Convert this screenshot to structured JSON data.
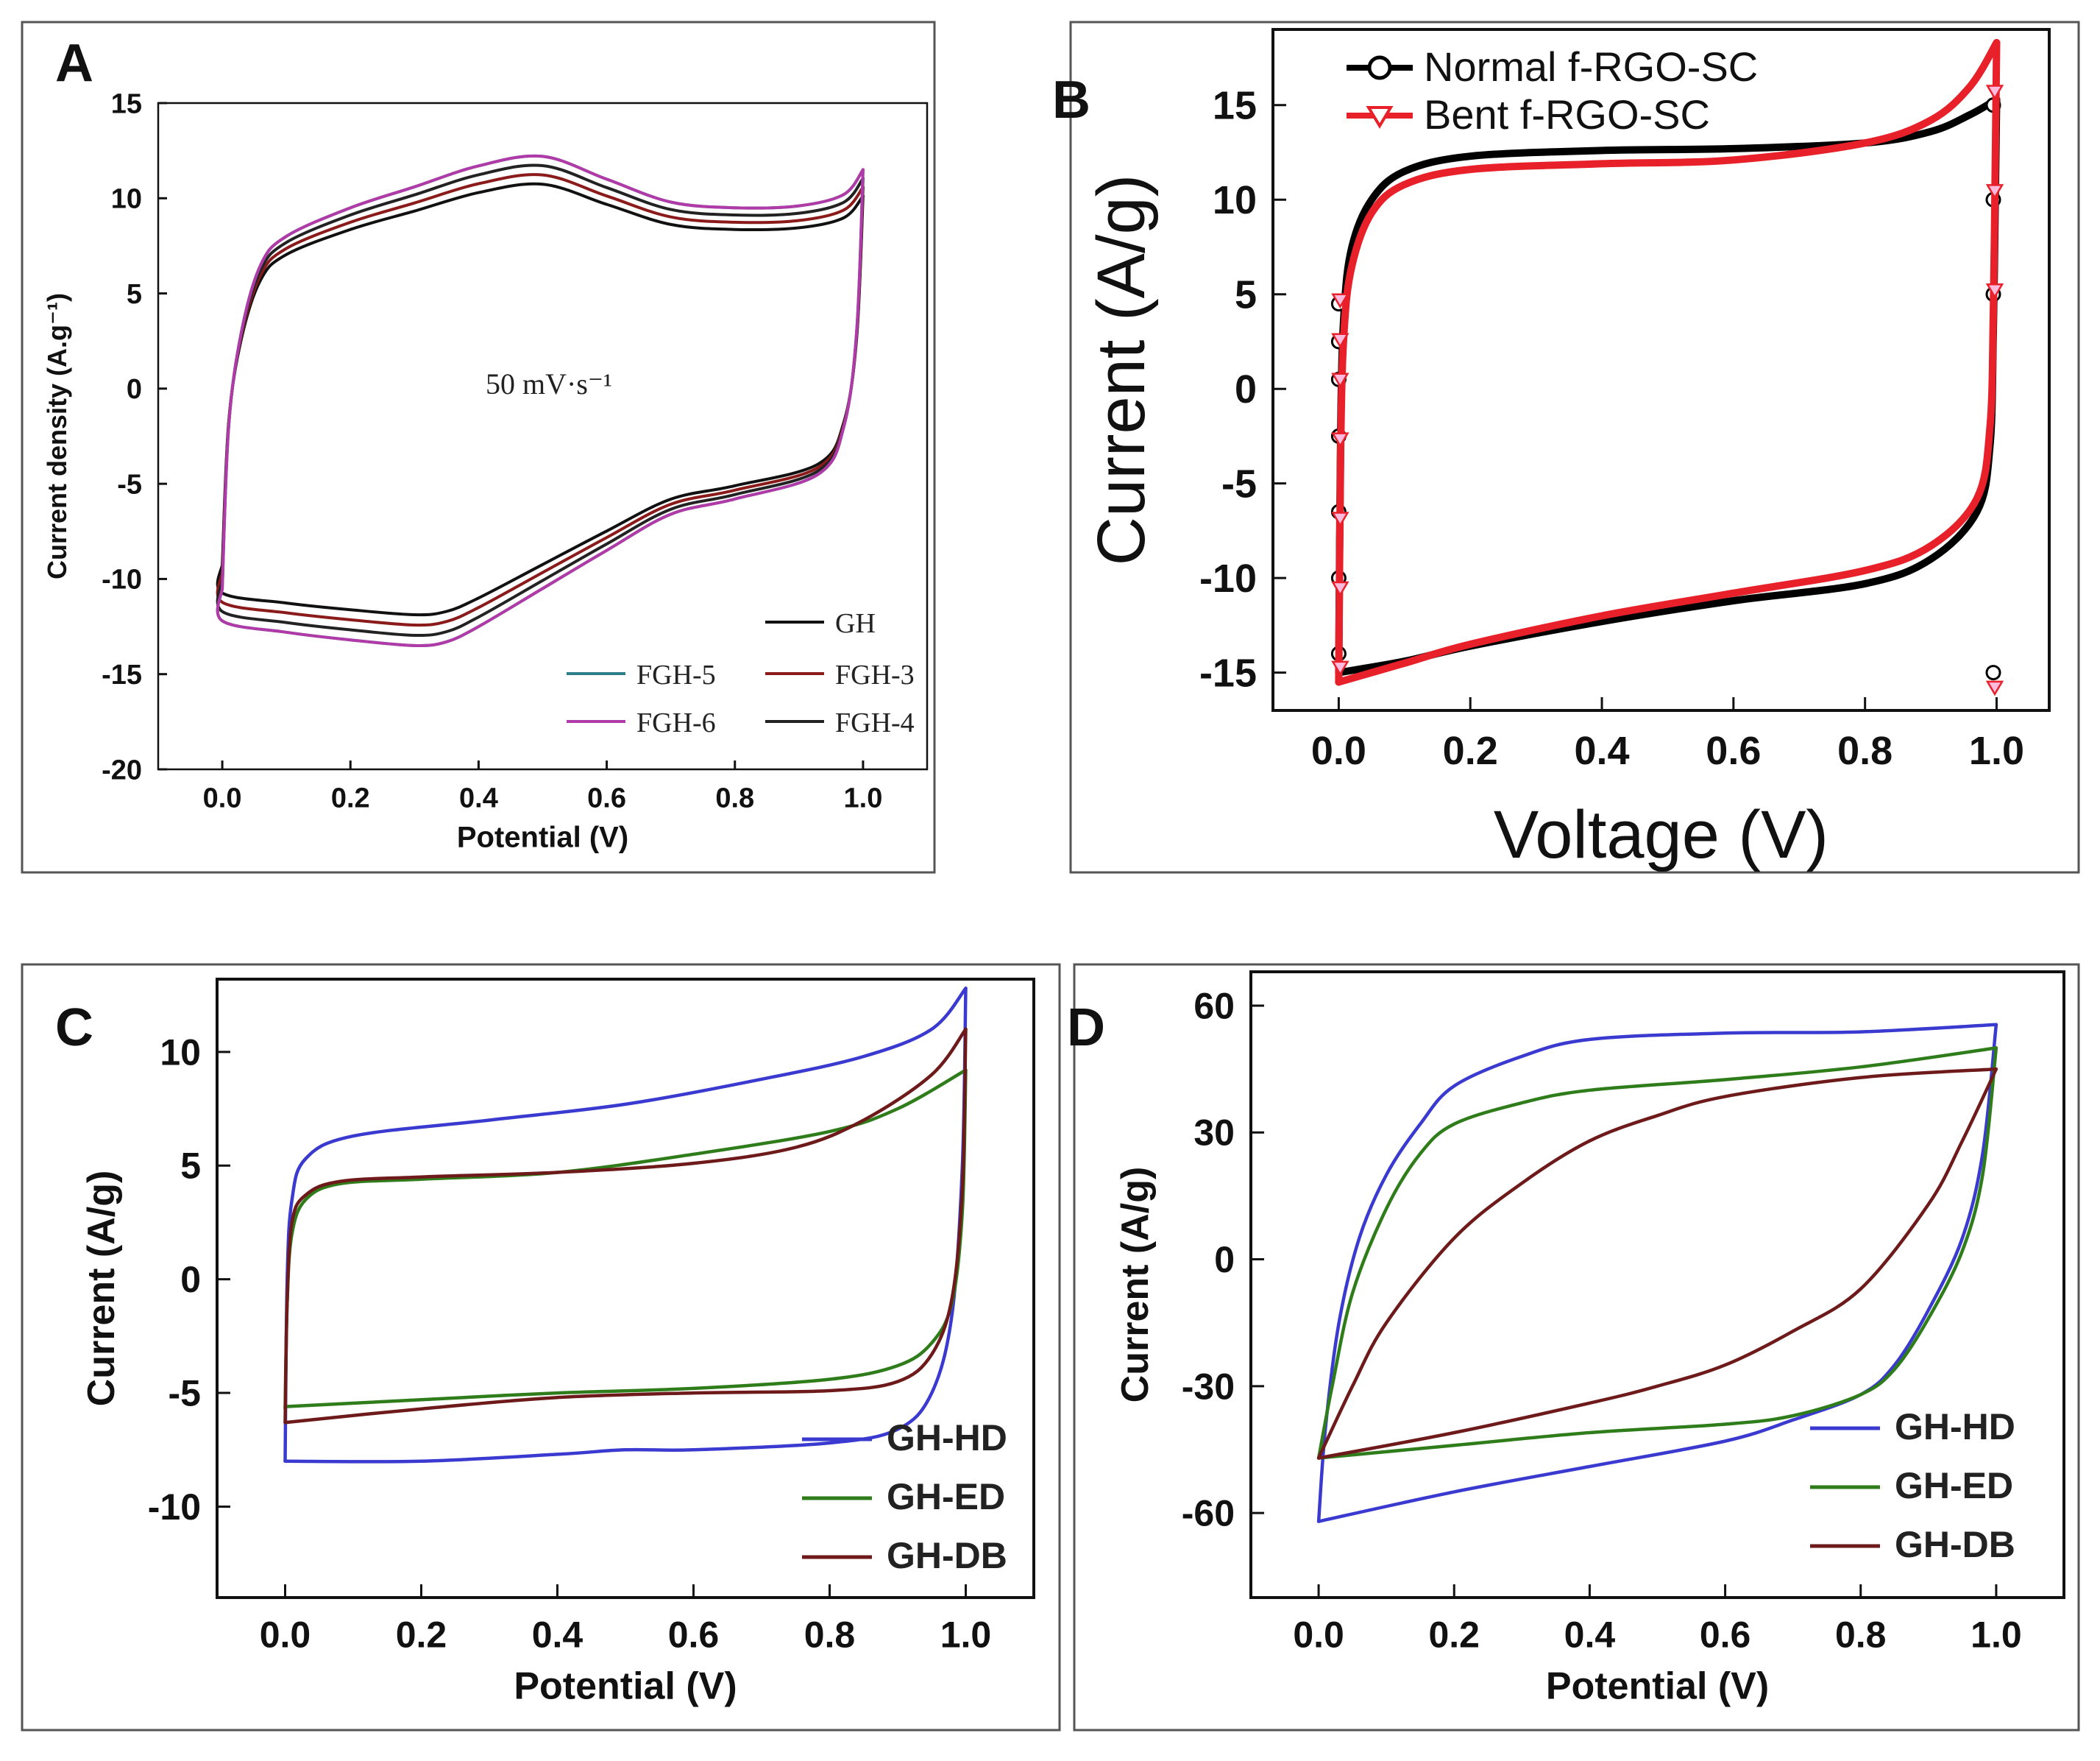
{
  "chart_data": [
    {
      "id": "A",
      "type": "line",
      "panel_label": "A",
      "xlabel": "Potential (V)",
      "ylabel": "Current density (A.g⁻¹)",
      "xlim": [
        -0.1,
        1.1
      ],
      "ylim": [
        -20,
        15
      ],
      "xticks": [
        0.0,
        0.2,
        0.4,
        0.6,
        0.8,
        1.0
      ],
      "xtick_labels": [
        "0.0",
        "0.2",
        "0.4",
        "0.6",
        "0.8",
        "1.0"
      ],
      "yticks": [
        -20,
        -15,
        -10,
        -5,
        0,
        5,
        10,
        15
      ],
      "ytick_labels": [
        "-20",
        "-15",
        "-10",
        "-5",
        "0",
        "5",
        "10",
        "15"
      ],
      "annotation": "50 mV·s⁻¹",
      "legend_position": "bottom-right",
      "series": [
        {
          "name": "GH",
          "color": "#111111",
          "scale": 0.88
        },
        {
          "name": "FGH-3",
          "color": "#8b1a1a",
          "scale": 0.92
        },
        {
          "name": "FGH-4",
          "color": "#222222",
          "scale": 0.96
        },
        {
          "name": "FGH-5",
          "color": "#2f7f86",
          "scale": 1.0
        },
        {
          "name": "FGH-6",
          "color": "#b03aa8",
          "scale": 1.0
        }
      ],
      "base_curve": {
        "upper": [
          [
            0.0,
            -10.5
          ],
          [
            0.01,
            -2
          ],
          [
            0.03,
            3
          ],
          [
            0.06,
            6.5
          ],
          [
            0.1,
            8
          ],
          [
            0.2,
            9.5
          ],
          [
            0.3,
            10.6
          ],
          [
            0.4,
            11.7
          ],
          [
            0.5,
            12.2
          ],
          [
            0.6,
            11
          ],
          [
            0.7,
            9.8
          ],
          [
            0.8,
            9.5
          ],
          [
            0.9,
            9.6
          ],
          [
            0.97,
            10.2
          ],
          [
            1.0,
            11.5
          ]
        ],
        "lower": [
          [
            1.0,
            11.5
          ],
          [
            0.99,
            3
          ],
          [
            0.97,
            -2
          ],
          [
            0.93,
            -4.5
          ],
          [
            0.8,
            -5.8
          ],
          [
            0.7,
            -6.6
          ],
          [
            0.6,
            -8.5
          ],
          [
            0.5,
            -10.5
          ],
          [
            0.4,
            -12.5
          ],
          [
            0.35,
            -13.3
          ],
          [
            0.3,
            -13.5
          ],
          [
            0.2,
            -13.2
          ],
          [
            0.1,
            -12.8
          ],
          [
            0.0,
            -12.2
          ],
          [
            0.0,
            -10.5
          ]
        ]
      }
    },
    {
      "id": "B",
      "type": "line",
      "panel_label": "B",
      "xlabel": "Voltage (V)",
      "ylabel": "Current (A/g)",
      "xlim": [
        -0.1,
        1.08
      ],
      "ylim": [
        -17,
        19
      ],
      "xticks": [
        0.0,
        0.2,
        0.4,
        0.6,
        0.8,
        1.0
      ],
      "xtick_labels": [
        "0.0",
        "0.2",
        "0.4",
        "0.6",
        "0.8",
        "1.0"
      ],
      "yticks": [
        -15,
        -10,
        -5,
        0,
        5,
        10,
        15
      ],
      "ytick_labels": [
        "-15",
        "-10",
        "-5",
        "0",
        "5",
        "10",
        "15"
      ],
      "legend_position": "top-left",
      "series": [
        {
          "name": "Normal f-RGO-SC",
          "color": "#000000",
          "marker": "circle",
          "upper": [
            [
              0.0,
              -15
            ],
            [
              0.003,
              -2
            ],
            [
              0.008,
              4
            ],
            [
              0.02,
              7.5
            ],
            [
              0.05,
              10
            ],
            [
              0.1,
              11.5
            ],
            [
              0.2,
              12.3
            ],
            [
              0.4,
              12.6
            ],
            [
              0.6,
              12.7
            ],
            [
              0.8,
              13
            ],
            [
              0.9,
              13.6
            ],
            [
              0.96,
              14.5
            ],
            [
              1.0,
              15.3
            ]
          ],
          "lower": [
            [
              1.0,
              15.3
            ],
            [
              0.998,
              10
            ],
            [
              0.995,
              3
            ],
            [
              0.99,
              -3
            ],
            [
              0.97,
              -6.5
            ],
            [
              0.9,
              -9
            ],
            [
              0.8,
              -10.3
            ],
            [
              0.6,
              -11.2
            ],
            [
              0.4,
              -12.3
            ],
            [
              0.2,
              -13.6
            ],
            [
              0.1,
              -14.4
            ],
            [
              0.0,
              -15
            ]
          ]
        },
        {
          "name": "Bent f-RGO-SC",
          "color": "#e8202a",
          "marker": "triangle-down",
          "upper": [
            [
              0.0,
              -15.5
            ],
            [
              0.003,
              -3
            ],
            [
              0.008,
              3
            ],
            [
              0.02,
              6.5
            ],
            [
              0.05,
              9.3
            ],
            [
              0.1,
              10.8
            ],
            [
              0.2,
              11.6
            ],
            [
              0.4,
              11.9
            ],
            [
              0.6,
              12.1
            ],
            [
              0.8,
              13
            ],
            [
              0.9,
              14.2
            ],
            [
              0.96,
              16
            ],
            [
              1.0,
              18.3
            ]
          ],
          "lower": [
            [
              1.0,
              18.3
            ],
            [
              0.998,
              12
            ],
            [
              0.995,
              4
            ],
            [
              0.99,
              -2
            ],
            [
              0.97,
              -5.8
            ],
            [
              0.9,
              -8.3
            ],
            [
              0.8,
              -9.6
            ],
            [
              0.6,
              -10.8
            ],
            [
              0.4,
              -12
            ],
            [
              0.2,
              -13.5
            ],
            [
              0.1,
              -14.5
            ],
            [
              0.0,
              -15.5
            ]
          ]
        }
      ]
    },
    {
      "id": "C",
      "type": "line",
      "panel_label": "C",
      "xlabel": "Potential (V)",
      "ylabel": "Current (A/g)",
      "xlim": [
        -0.1,
        1.1
      ],
      "ylim": [
        -14,
        13.2
      ],
      "xticks": [
        0.0,
        0.2,
        0.4,
        0.6,
        0.8,
        1.0
      ],
      "xtick_labels": [
        "0.0",
        "0.2",
        "0.4",
        "0.6",
        "0.8",
        "1.0"
      ],
      "yticks": [
        -10,
        -5,
        0,
        5,
        10
      ],
      "ytick_labels": [
        "-10",
        "-5",
        "0",
        "5",
        "10"
      ],
      "legend_position": "bottom-right",
      "series": [
        {
          "name": "GH-HD",
          "color": "#3a3ad0",
          "upper": [
            [
              0.0,
              -8
            ],
            [
              0.003,
              0
            ],
            [
              0.01,
              3.5
            ],
            [
              0.03,
              5.3
            ],
            [
              0.1,
              6.3
            ],
            [
              0.3,
              7
            ],
            [
              0.5,
              7.7
            ],
            [
              0.7,
              8.8
            ],
            [
              0.85,
              9.8
            ],
            [
              0.95,
              11
            ],
            [
              1.0,
              12.8
            ]
          ],
          "lower": [
            [
              1.0,
              12.8
            ],
            [
              0.995,
              5
            ],
            [
              0.98,
              -1.5
            ],
            [
              0.95,
              -5
            ],
            [
              0.9,
              -6.6
            ],
            [
              0.8,
              -7.2
            ],
            [
              0.6,
              -7.5
            ],
            [
              0.5,
              -7.5
            ],
            [
              0.4,
              -7.7
            ],
            [
              0.2,
              -8
            ],
            [
              0.0,
              -8
            ]
          ]
        },
        {
          "name": "GH-ED",
          "color": "#2e7d1a",
          "upper": [
            [
              0.0,
              -5.7
            ],
            [
              0.003,
              -1
            ],
            [
              0.01,
              2
            ],
            [
              0.03,
              3.5
            ],
            [
              0.08,
              4.2
            ],
            [
              0.2,
              4.4
            ],
            [
              0.4,
              4.7
            ],
            [
              0.6,
              5.5
            ],
            [
              0.8,
              6.5
            ],
            [
              0.9,
              7.5
            ],
            [
              1.0,
              9.2
            ]
          ],
          "lower": [
            [
              1.0,
              9.2
            ],
            [
              0.995,
              3
            ],
            [
              0.98,
              -1
            ],
            [
              0.95,
              -2.8
            ],
            [
              0.9,
              -3.8
            ],
            [
              0.8,
              -4.4
            ],
            [
              0.6,
              -4.8
            ],
            [
              0.4,
              -5
            ],
            [
              0.2,
              -5.3
            ],
            [
              0.0,
              -5.6
            ]
          ]
        },
        {
          "name": "GH-DB",
          "color": "#6e1a1a",
          "upper": [
            [
              0.0,
              -6.3
            ],
            [
              0.003,
              -1
            ],
            [
              0.01,
              2.5
            ],
            [
              0.03,
              3.7
            ],
            [
              0.08,
              4.3
            ],
            [
              0.2,
              4.5
            ],
            [
              0.4,
              4.7
            ],
            [
              0.6,
              5.1
            ],
            [
              0.75,
              5.8
            ],
            [
              0.85,
              7
            ],
            [
              0.95,
              9
            ],
            [
              1.0,
              11
            ]
          ],
          "lower": [
            [
              1.0,
              11
            ],
            [
              0.995,
              4
            ],
            [
              0.98,
              -0.8
            ],
            [
              0.95,
              -3.3
            ],
            [
              0.9,
              -4.5
            ],
            [
              0.8,
              -4.9
            ],
            [
              0.6,
              -5
            ],
            [
              0.4,
              -5.2
            ],
            [
              0.2,
              -5.7
            ],
            [
              0.0,
              -6.3
            ]
          ]
        }
      ]
    },
    {
      "id": "D",
      "type": "line",
      "panel_label": "D",
      "xlabel": "Potential (V)",
      "ylabel": "Current (A/g)",
      "xlim": [
        -0.1,
        1.1
      ],
      "ylim": [
        -80,
        68
      ],
      "xticks": [
        0.0,
        0.2,
        0.4,
        0.6,
        0.8,
        1.0
      ],
      "xtick_labels": [
        "0.0",
        "0.2",
        "0.4",
        "0.6",
        "0.8",
        "1.0"
      ],
      "yticks": [
        -60,
        -30,
        0,
        30,
        60
      ],
      "ytick_labels": [
        "-60",
        "-30",
        "0",
        "30",
        "60"
      ],
      "legend_position": "bottom-right",
      "series": [
        {
          "name": "GH-HD",
          "color": "#3a3ad0",
          "upper": [
            [
              0.0,
              -62
            ],
            [
              0.01,
              -40
            ],
            [
              0.03,
              -15
            ],
            [
              0.06,
              5
            ],
            [
              0.1,
              20
            ],
            [
              0.15,
              32
            ],
            [
              0.2,
              41
            ],
            [
              0.3,
              48
            ],
            [
              0.4,
              52
            ],
            [
              0.6,
              53.5
            ],
            [
              0.8,
              53.8
            ],
            [
              1.0,
              55.5
            ]
          ],
          "lower": [
            [
              1.0,
              55.5
            ],
            [
              0.98,
              25
            ],
            [
              0.95,
              5
            ],
            [
              0.9,
              -12
            ],
            [
              0.85,
              -25
            ],
            [
              0.8,
              -32
            ],
            [
              0.7,
              -38
            ],
            [
              0.6,
              -43
            ],
            [
              0.4,
              -49
            ],
            [
              0.2,
              -55
            ],
            [
              0.0,
              -62
            ]
          ]
        },
        {
          "name": "GH-ED",
          "color": "#2e7d1a",
          "upper": [
            [
              0.0,
              -47
            ],
            [
              0.02,
              -30
            ],
            [
              0.05,
              -8
            ],
            [
              0.1,
              12
            ],
            [
              0.15,
              25
            ],
            [
              0.2,
              32
            ],
            [
              0.3,
              37
            ],
            [
              0.4,
              40
            ],
            [
              0.6,
              42.5
            ],
            [
              0.8,
              45.5
            ],
            [
              1.0,
              50
            ]
          ],
          "lower": [
            [
              1.0,
              50
            ],
            [
              0.98,
              20
            ],
            [
              0.95,
              2
            ],
            [
              0.9,
              -14
            ],
            [
              0.85,
              -26
            ],
            [
              0.8,
              -32
            ],
            [
              0.7,
              -37
            ],
            [
              0.6,
              -39
            ],
            [
              0.4,
              -41
            ],
            [
              0.2,
              -44
            ],
            [
              0.0,
              -47
            ]
          ]
        },
        {
          "name": "GH-DB",
          "color": "#6e1a1a",
          "upper": [
            [
              0.0,
              -47
            ],
            [
              0.05,
              -30
            ],
            [
              0.1,
              -15
            ],
            [
              0.2,
              5
            ],
            [
              0.3,
              18
            ],
            [
              0.4,
              28
            ],
            [
              0.5,
              34
            ],
            [
              0.6,
              38.5
            ],
            [
              0.8,
              43
            ],
            [
              1.0,
              45
            ]
          ],
          "lower": [
            [
              1.0,
              45
            ],
            [
              0.95,
              28
            ],
            [
              0.9,
              13
            ],
            [
              0.8,
              -7
            ],
            [
              0.7,
              -17
            ],
            [
              0.6,
              -25
            ],
            [
              0.5,
              -30
            ],
            [
              0.4,
              -34
            ],
            [
              0.2,
              -41
            ],
            [
              0.0,
              -47
            ]
          ]
        }
      ]
    }
  ]
}
